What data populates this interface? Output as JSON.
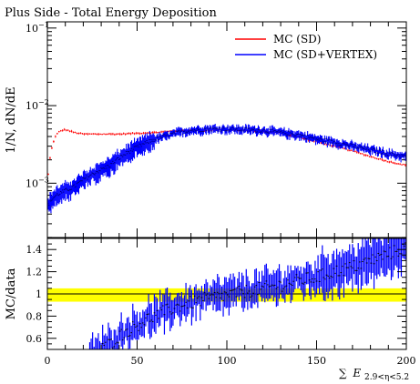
{
  "chart_data": [
    {
      "type": "line",
      "title": "Plus Side - Total Energy Deposition",
      "ylabel": "1/N, dN/dE",
      "yscale": "log",
      "xlim": [
        0,
        200
      ],
      "ylim": [
        0.0002,
        0.12
      ],
      "ytick_labels": [
        "10⁻¹",
        "10⁻²",
        "10⁻³"
      ],
      "legend_position": "top-right",
      "grid": false,
      "series": [
        {
          "name": "MC (SD)",
          "color": "#ff0000",
          "x": [
            0,
            2,
            4,
            6,
            8,
            10,
            15,
            20,
            30,
            40,
            50,
            60,
            70,
            80,
            90,
            100,
            110,
            120,
            130,
            140,
            150,
            160,
            170,
            180,
            190,
            200
          ],
          "y": [
            0.0009,
            0.0025,
            0.0038,
            0.0045,
            0.0048,
            0.0049,
            0.0045,
            0.0043,
            0.0043,
            0.0043,
            0.0044,
            0.0045,
            0.0047,
            0.0048,
            0.0048,
            0.0049,
            0.0048,
            0.0047,
            0.0044,
            0.0039,
            0.0034,
            0.003,
            0.0026,
            0.0022,
            0.0019,
            0.0017
          ]
        },
        {
          "name": "MC (SD+VERTEX)",
          "color": "#0000ff",
          "x": [
            0,
            2,
            5,
            10,
            15,
            20,
            25,
            30,
            35,
            40,
            45,
            50,
            55,
            60,
            65,
            70,
            75,
            80,
            90,
            100,
            110,
            120,
            130,
            140,
            150,
            160,
            170,
            180,
            190,
            200
          ],
          "y": [
            0.0005,
            0.0006,
            0.0007,
            0.0008,
            0.0009,
            0.0011,
            0.0013,
            0.0015,
            0.0017,
            0.0021,
            0.0025,
            0.0029,
            0.0033,
            0.0037,
            0.004,
            0.0043,
            0.0046,
            0.0048,
            0.005,
            0.005,
            0.0049,
            0.0048,
            0.0045,
            0.0042,
            0.0037,
            0.0034,
            0.003,
            0.0027,
            0.0024,
            0.0022
          ]
        }
      ]
    },
    {
      "type": "line",
      "ylabel": "MC/data",
      "xlabel": "∑ E₂.₉<η<₅.₂",
      "xlim": [
        0,
        200
      ],
      "ylim": [
        0.5,
        1.5
      ],
      "xticks": [
        0,
        50,
        100,
        150,
        200
      ],
      "yticks": [
        0.6,
        0.8,
        1,
        1.2,
        1.4
      ],
      "band": {
        "low": 0.93,
        "high": 1.05,
        "color": "#ffff00"
      },
      "reference_line": 1,
      "series": [
        {
          "name": "MC (SD+VERTEX)",
          "color": "#0000ff",
          "x": [
            20,
            30,
            35,
            40,
            45,
            50,
            55,
            60,
            65,
            70,
            75,
            80,
            85,
            90,
            100,
            110,
            120,
            130,
            140,
            150,
            160,
            170,
            180,
            190,
            200
          ],
          "y": [
            0.38,
            0.5,
            0.55,
            0.62,
            0.67,
            0.72,
            0.77,
            0.8,
            0.84,
            0.87,
            0.9,
            0.92,
            0.94,
            0.96,
            0.99,
            1.02,
            1.05,
            1.08,
            1.12,
            1.15,
            1.2,
            1.24,
            1.3,
            1.36,
            1.42
          ]
        }
      ]
    }
  ],
  "axis": {
    "top_ytick_labels": [
      "10",
      "10",
      "10"
    ],
    "top_ytick_exps": [
      "−1",
      "−2",
      "−3"
    ],
    "x_tick_labels": [
      "0",
      "50",
      "100",
      "150",
      "200"
    ],
    "bottom_ytick_labels": [
      "0.6",
      "0.8",
      "1",
      "1.2",
      "1.4"
    ]
  },
  "xlabel_parts": {
    "sum": "∑",
    "var": "E",
    "sub": "2.9<η<5.2"
  }
}
